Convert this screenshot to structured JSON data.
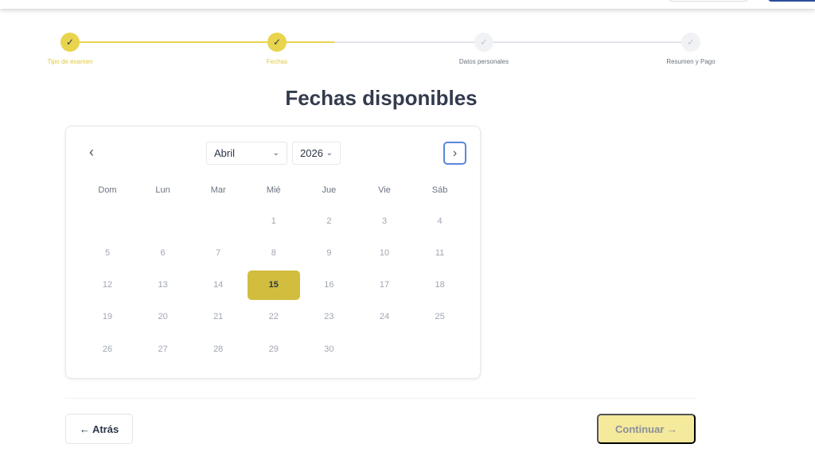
{
  "stepper": {
    "steps": [
      {
        "label": "Tipo de examen",
        "status": "done"
      },
      {
        "label": "Fechas",
        "status": "done"
      },
      {
        "label": "Datos personales",
        "status": "pending"
      },
      {
        "label": "Resumen y Pago",
        "status": "pending"
      }
    ],
    "check_icon": "✓"
  },
  "title": "Fechas disponibles",
  "calendar": {
    "prev_icon": "‹",
    "next_icon": "›",
    "chevron_icon": "⌄",
    "month": "Abril",
    "year": "2026",
    "weekdays": [
      "Dom",
      "Lun",
      "Mar",
      "Mié",
      "Jue",
      "Vie",
      "Sáb"
    ],
    "weeks": [
      [
        null,
        null,
        null,
        "1",
        "2",
        "3",
        "4"
      ],
      [
        "5",
        "6",
        "7",
        "8",
        "9",
        "10",
        "11"
      ],
      [
        "12",
        "13",
        "14",
        "15",
        "16",
        "17",
        "18"
      ],
      [
        "19",
        "20",
        "21",
        "22",
        "23",
        "24",
        "25"
      ],
      [
        "26",
        "27",
        "28",
        "29",
        "30",
        null,
        null
      ]
    ],
    "selected": "15"
  },
  "footer": {
    "back_label": "← Atrás",
    "continue_label": "Continuar →"
  },
  "colors": {
    "accent": "#e8d44d",
    "selected_day": "#d2bd3e",
    "continue_disabled": "#f5e99c",
    "focus": "#5b87d9"
  }
}
